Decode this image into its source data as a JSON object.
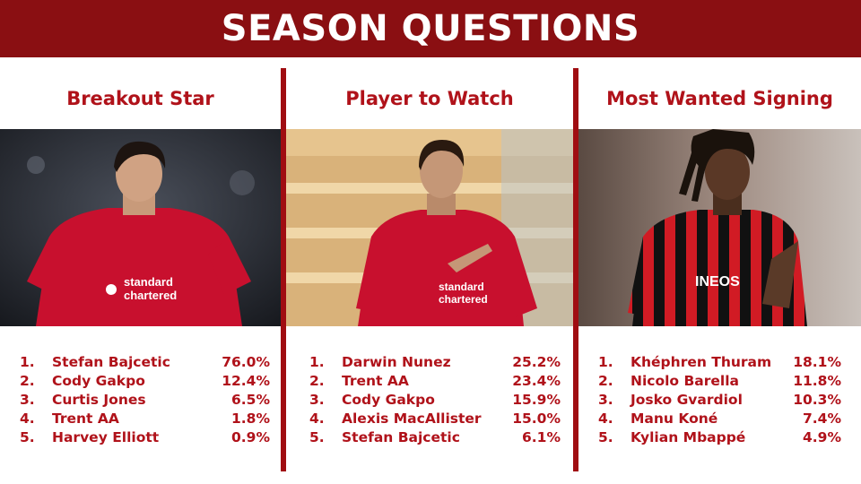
{
  "header": {
    "title": "SEASON QUESTIONS"
  },
  "colors": {
    "banner": "#8a0f12",
    "accent": "#b0121a"
  },
  "columns": [
    {
      "title": "Breakout Star",
      "image": "player-photo-liverpool-red-kit",
      "entries": [
        {
          "rank": "1.",
          "name": "Stefan Bajcetic",
          "pct": "76.0%"
        },
        {
          "rank": "2.",
          "name": "Cody Gakpo",
          "pct": "12.4%"
        },
        {
          "rank": "3.",
          "name": "Curtis Jones",
          "pct": "6.5%"
        },
        {
          "rank": "4.",
          "name": "Trent AA",
          "pct": "1.8%"
        },
        {
          "rank": "5.",
          "name": "Harvey Elliott",
          "pct": "0.9%"
        }
      ]
    },
    {
      "title": "Player to Watch",
      "image": "player-photo-liverpool-pointing-badge",
      "entries": [
        {
          "rank": "1.",
          "name": "Darwin Nunez",
          "pct": "25.2%"
        },
        {
          "rank": "2.",
          "name": "Trent AA",
          "pct": "23.4%"
        },
        {
          "rank": "3.",
          "name": "Cody Gakpo",
          "pct": "15.9%"
        },
        {
          "rank": "4.",
          "name": "Alexis MacAllister",
          "pct": "15.0%"
        },
        {
          "rank": "5.",
          "name": "Stefan Bajcetic",
          "pct": "6.1%"
        }
      ]
    },
    {
      "title": "Most Wanted Signing",
      "image": "player-photo-red-black-stripes",
      "entries": [
        {
          "rank": "1.",
          "name": "Khéphren Thuram",
          "pct": "18.1%"
        },
        {
          "rank": "2.",
          "name": "Nicolo Barella",
          "pct": "11.8%"
        },
        {
          "rank": "3.",
          "name": "Josko Gvardiol",
          "pct": "10.3%"
        },
        {
          "rank": "4.",
          "name": "Manu Koné",
          "pct": "7.4%"
        },
        {
          "rank": "5.",
          "name": "Kylian Mbappé",
          "pct": "4.9%"
        }
      ]
    }
  ]
}
